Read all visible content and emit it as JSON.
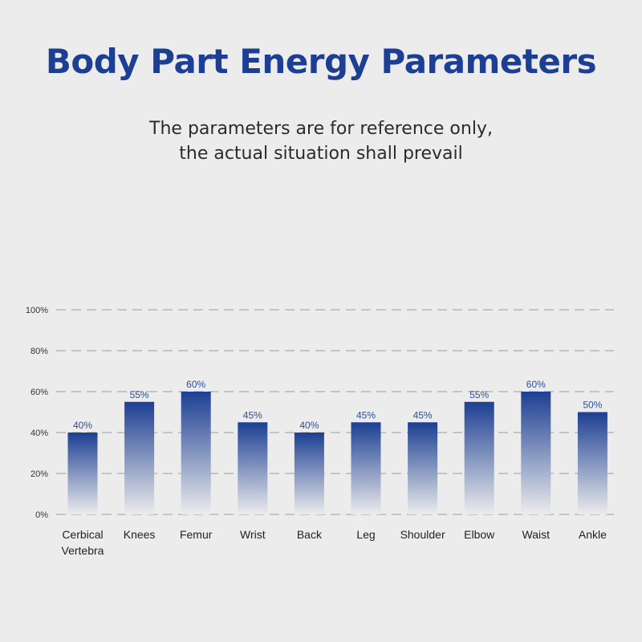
{
  "title": "Body Part Energy Parameters",
  "subtitle": {
    "line1": "The parameters are for reference only,",
    "line2": "the actual situation shall prevail"
  },
  "colors": {
    "title": "#1d3f93",
    "bar_top": "#1d3f93",
    "bar_bottom": "#ececec",
    "value_label": "#2f4d9c",
    "grid": "#c4c4c4",
    "background": "#ececec"
  },
  "chart_data": {
    "type": "bar",
    "categories": [
      "Cerbical Vertebra",
      "Knees",
      "Femur",
      "Wrist",
      "Back",
      "Leg",
      "Shoulder",
      "Elbow",
      "Waist",
      "Ankle"
    ],
    "category_label_lines": [
      [
        "Cerbical",
        "Vertebra"
      ],
      [
        "Knees"
      ],
      [
        "Femur"
      ],
      [
        "Wrist"
      ],
      [
        "Back"
      ],
      [
        "Leg"
      ],
      [
        "Shoulder"
      ],
      [
        "Elbow"
      ],
      [
        "Waist"
      ],
      [
        "Ankle"
      ]
    ],
    "values": [
      40,
      55,
      60,
      45,
      40,
      45,
      45,
      55,
      60,
      50
    ],
    "value_labels": [
      "40%",
      "55%",
      "60%",
      "45%",
      "40%",
      "45%",
      "45%",
      "55%",
      "60%",
      "50%"
    ],
    "y_ticks": [
      0,
      20,
      40,
      60,
      80,
      100
    ],
    "y_tick_labels": [
      "0%",
      "20%",
      "40%",
      "60%",
      "80%",
      "100%"
    ],
    "ylim": [
      0,
      100
    ],
    "grid": true,
    "grid_style": "dashed",
    "legend": "none"
  }
}
